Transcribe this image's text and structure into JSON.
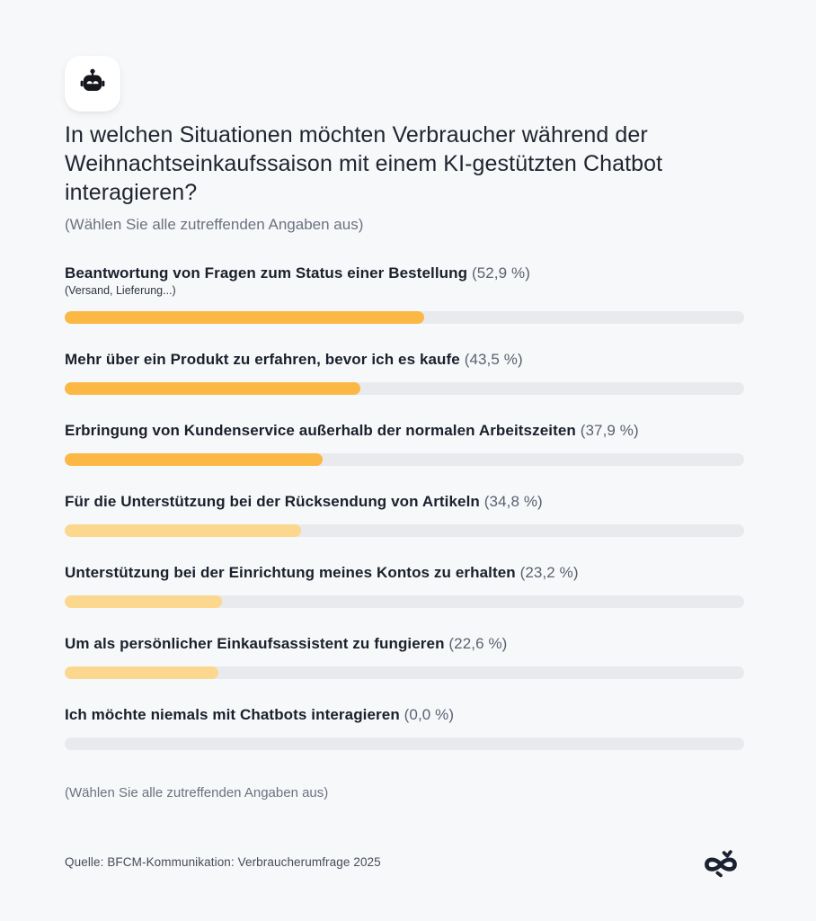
{
  "page": {
    "background": "#F7F8FA"
  },
  "header": {
    "icon": "robot-icon",
    "title": "In welchen Situationen möchten Verbraucher während der Weihnachtseinkaufssaison mit einem KI-gestützten Chatbot interagieren?",
    "subtitle": "(Wählen Sie alle zutreffenden Angaben aus)"
  },
  "chart_data": {
    "type": "bar",
    "orientation": "horizontal",
    "unit": "%",
    "xlim": [
      0,
      100
    ],
    "grid": false,
    "legend": "none",
    "colors": {
      "bar_strong": "#FBB845",
      "bar_light": "#FCD78E",
      "track": "#E8EAED"
    },
    "rows": [
      {
        "label": "Beantwortung von Fragen zum Status einer Bestellung",
        "sublabel": "(Versand, Lieferung...)",
        "value": 52.9,
        "value_label": "(52,9 %)",
        "bar_color": "#FBB845"
      },
      {
        "label": "Mehr über ein Produkt zu erfahren, bevor ich es kaufe",
        "value": 43.5,
        "value_label": "(43,5 %)",
        "bar_color": "#FBB845"
      },
      {
        "label": "Erbringung von Kundenservice außerhalb der normalen Arbeitszeiten",
        "value": 37.9,
        "value_label": "(37,9 %)",
        "bar_color": "#FBB845"
      },
      {
        "label": "Für die Unterstützung bei der Rücksendung von Artikeln",
        "value": 34.8,
        "value_label": "(34,8 %)",
        "bar_color": "#FCD78E"
      },
      {
        "label": "Unterstützung bei der Einrichtung meines Kontos zu erhalten",
        "value": 23.2,
        "value_label": "(23,2 %)",
        "bar_color": "#FCD78E"
      },
      {
        "label": "Um als persönlicher Einkaufsassistent zu fungieren",
        "value": 22.6,
        "value_label": "(22,6 %)",
        "bar_color": "#FCD78E"
      },
      {
        "label": "Ich möchte niemals mit Chatbots interagieren",
        "value": 0.0,
        "value_label": "(0,0 %)",
        "bar_color": "none"
      }
    ]
  },
  "footer": {
    "note": "(Wählen Sie alle zutreffenden Angaben aus)",
    "source": "Quelle: BFCM-Kommunikation: Verbraucherumfrage 2025",
    "logo": "omnisend-infinity-logo"
  }
}
